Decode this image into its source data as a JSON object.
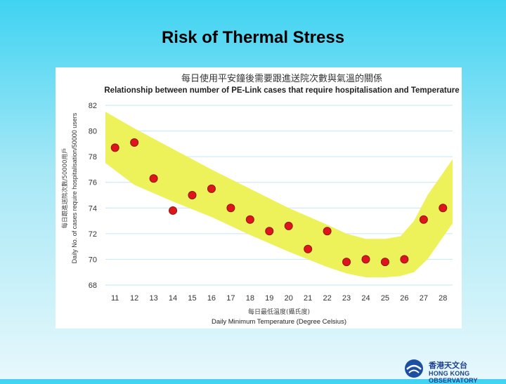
{
  "slide_title": "Risk of Thermal Stress",
  "chart_data": {
    "type": "scatter",
    "title_zh": "每日使用平安鐘後需要跟進送院次數與氣溫的關係",
    "title": "Relationship between number of PE-Link cases that require hospitalisation and Temperature",
    "xlabel_zh": "每日最低溫度(攝氏度)",
    "xlabel": "Daily Minimum Temperature (Degree Celsius)",
    "ylabel_zh": "每日跟進送院次數/50000用戶",
    "ylabel": "Daily No. of cases require hospitalisation/50000 users",
    "x_ticks": [
      "11",
      "12",
      "13",
      "14",
      "15",
      "16",
      "17",
      "18",
      "19",
      "20",
      "21",
      "22",
      "23",
      "24",
      "25",
      "26",
      "27",
      "28"
    ],
    "y_ticks": [
      "68",
      "70",
      "72",
      "74",
      "76",
      "78",
      "80",
      "82"
    ],
    "xlim": [
      10.5,
      28.5
    ],
    "ylim": [
      68,
      82
    ],
    "points": [
      {
        "x": 11,
        "y": 78.7
      },
      {
        "x": 12,
        "y": 79.1
      },
      {
        "x": 13,
        "y": 76.3
      },
      {
        "x": 14,
        "y": 73.8
      },
      {
        "x": 15,
        "y": 75.0
      },
      {
        "x": 16,
        "y": 75.5
      },
      {
        "x": 17,
        "y": 74.0
      },
      {
        "x": 18,
        "y": 73.1
      },
      {
        "x": 19,
        "y": 72.2
      },
      {
        "x": 20,
        "y": 72.6
      },
      {
        "x": 21,
        "y": 70.8
      },
      {
        "x": 22,
        "y": 72.2
      },
      {
        "x": 23,
        "y": 69.8
      },
      {
        "x": 24,
        "y": 70.0
      },
      {
        "x": 25,
        "y": 69.8
      },
      {
        "x": 26,
        "y": 70.0
      },
      {
        "x": 27,
        "y": 73.1
      },
      {
        "x": 28,
        "y": 74.0
      }
    ],
    "band": {
      "x": [
        10.5,
        12,
        14,
        16,
        18,
        20,
        22,
        23,
        24,
        25,
        25.8,
        26.5,
        27.2,
        28.5
      ],
      "upper": [
        81.5,
        80.2,
        78.6,
        77.0,
        75.5,
        74.0,
        72.7,
        72.0,
        71.6,
        71.6,
        71.8,
        73.0,
        75.0,
        77.8
      ],
      "lower": [
        77.5,
        75.8,
        74.5,
        73.3,
        71.9,
        70.6,
        69.4,
        68.9,
        68.6,
        68.6,
        68.7,
        69.0,
        70.0,
        72.8
      ]
    },
    "grid": true,
    "colors": {
      "point": "#e0141b",
      "point_edge": "#8a1a10",
      "band": "#eef25a",
      "grid": "#c7e6f5",
      "axis_text": "#333333",
      "plot_bg": "#ffffff"
    }
  },
  "logo": {
    "name_zh": "香港天文台",
    "name_en": "HONG KONG OBSERVATORY"
  }
}
